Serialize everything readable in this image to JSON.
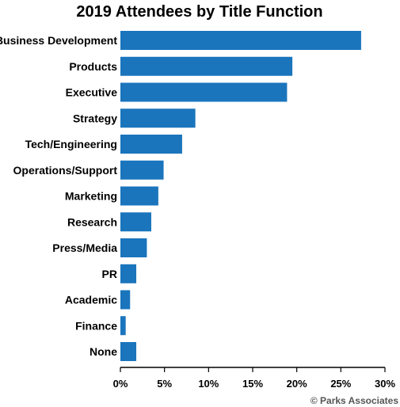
{
  "chart_data": {
    "type": "bar",
    "orientation": "horizontal",
    "title": "2019 Attendees by Title Function",
    "categories": [
      "Business Development",
      "Products",
      "Executive",
      "Strategy",
      "Tech/Engineering",
      "Operations/Support",
      "Marketing",
      "Research",
      "Press/Media",
      "PR",
      "Academic",
      "Finance",
      "None"
    ],
    "values": [
      27.3,
      19.5,
      18.9,
      8.5,
      7.0,
      4.9,
      4.3,
      3.5,
      3.0,
      1.8,
      1.1,
      0.6,
      1.8
    ],
    "xlim": [
      0,
      30
    ],
    "x_ticks": [
      "0%",
      "5%",
      "10%",
      "15%",
      "20%",
      "25%",
      "30%"
    ],
    "xlabel": "",
    "ylabel": "",
    "grid": false,
    "bar_color": "#1a75bc"
  },
  "credit": "© Parks Associates"
}
